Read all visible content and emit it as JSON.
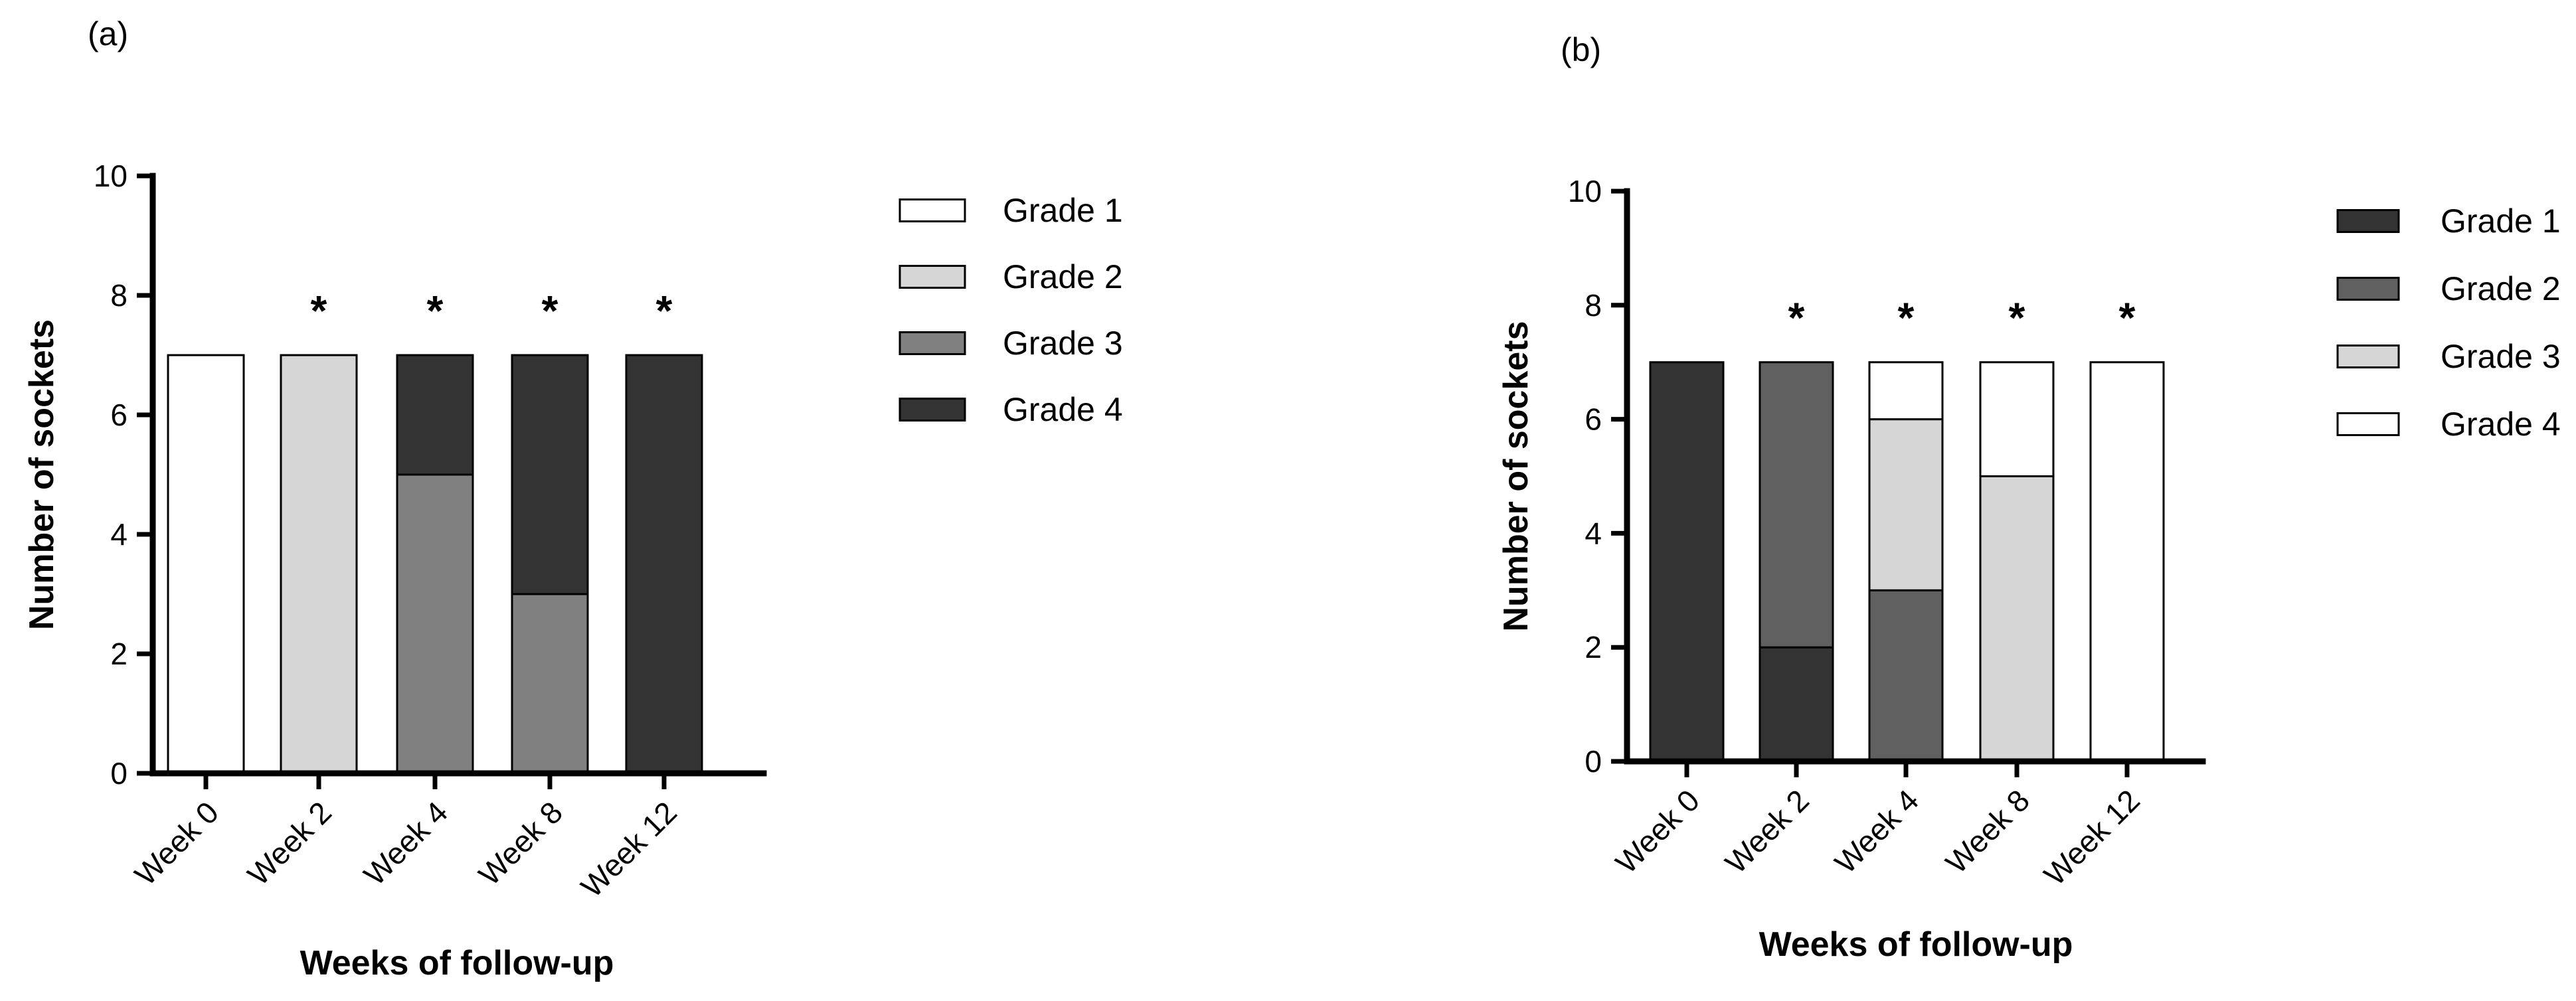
{
  "chart_data": [
    {
      "type": "bar",
      "stacked": true,
      "panel_label": "(a)",
      "categories": [
        "Week 0",
        "Week 2",
        "Week 4",
        "Week 8",
        "Week 12"
      ],
      "series": [
        {
          "name": "Grade 1",
          "color": "#ffffff",
          "values": [
            7,
            0,
            0,
            0,
            0
          ]
        },
        {
          "name": "Grade 2",
          "color": "#d6d6d6",
          "values": [
            0,
            7,
            0,
            0,
            0
          ]
        },
        {
          "name": "Grade 3",
          "color": "#808080",
          "values": [
            0,
            0,
            5,
            3,
            0
          ]
        },
        {
          "name": "Grade 4",
          "color": "#333333",
          "values": [
            0,
            0,
            2,
            4,
            7
          ]
        }
      ],
      "significance": [
        "",
        "*",
        "*",
        "*",
        "*"
      ],
      "xlabel": "Weeks of follow-up",
      "ylabel": "Number of sockets",
      "ylim": [
        0,
        10
      ],
      "yticks": [
        0,
        2,
        4,
        6,
        8,
        10
      ],
      "legend": [
        "Grade 1",
        "Grade 2",
        "Grade 3",
        "Grade 4"
      ],
      "legend_position": "right"
    },
    {
      "type": "bar",
      "stacked": true,
      "panel_label": "(b)",
      "categories": [
        "Week 0",
        "Week 2",
        "Week 4",
        "Week 8",
        "Week 12"
      ],
      "series": [
        {
          "name": "Grade 1",
          "color": "#333333",
          "values": [
            7,
            2,
            0,
            0,
            0
          ]
        },
        {
          "name": "Grade 2",
          "color": "#606060",
          "values": [
            0,
            5,
            3,
            0,
            0
          ]
        },
        {
          "name": "Grade 3",
          "color": "#d6d6d6",
          "values": [
            0,
            0,
            3,
            5,
            0
          ]
        },
        {
          "name": "Grade 4",
          "color": "#ffffff",
          "values": [
            0,
            0,
            1,
            2,
            7
          ]
        }
      ],
      "significance": [
        "",
        "*",
        "*",
        "*",
        "*"
      ],
      "xlabel": "Weeks of follow-up",
      "ylabel": "Number of sockets",
      "ylim": [
        0,
        10
      ],
      "yticks": [
        0,
        2,
        4,
        6,
        8,
        10
      ],
      "legend": [
        "Grade 1",
        "Grade 2",
        "Grade 3",
        "Grade 4"
      ],
      "legend_position": "right"
    }
  ]
}
